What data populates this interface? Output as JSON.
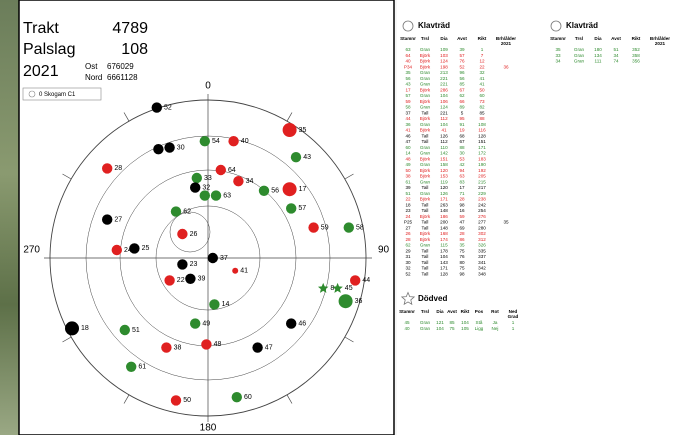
{
  "header": {
    "trakt_label": "Trakt",
    "trakt": "4789",
    "palslag_label": "Palslag",
    "palslag": "108",
    "year": "2021",
    "ost_label": "Ost",
    "ost": "676029",
    "nord_label": "Nord",
    "nord": "6661128"
  },
  "legend": "0 Skogam C1",
  "compass": {
    "n": "0",
    "e": "90",
    "s": "180",
    "w": "270"
  },
  "species_colors": {
    "Gran": "#2e8b2e",
    "Björk": "#e02020",
    "Tall": "#000000"
  },
  "plot": {
    "points": [
      {
        "label": "52",
        "east": -3.2,
        "north": 9.4,
        "color": "#000000"
      },
      {
        "label": "29",
        "east": -3.1,
        "north": 6.8,
        "color": "#000000"
      },
      {
        "label": "30",
        "east": -2.4,
        "north": 6.9,
        "color": "#000000"
      },
      {
        "label": "54",
        "east": -0.2,
        "north": 7.3,
        "color": "#2e8b2e"
      },
      {
        "label": "40",
        "east": 1.6,
        "north": 7.3,
        "color": "#e02020"
      },
      {
        "label": "35",
        "east": 5.1,
        "north": 8.0,
        "color": "#e02020",
        "large": true
      },
      {
        "label": "43",
        "east": 5.5,
        "north": 6.3,
        "color": "#2e8b2e"
      },
      {
        "label": "28",
        "east": -6.3,
        "north": 5.6,
        "color": "#e02020"
      },
      {
        "label": "64",
        "east": 0.8,
        "north": 5.5,
        "color": "#e02020"
      },
      {
        "label": "34",
        "east": 1.9,
        "north": 4.8,
        "color": "#e02020"
      },
      {
        "label": "33",
        "east": -0.7,
        "north": 5.0,
        "color": "#2e8b2e"
      },
      {
        "label": "32",
        "east": -0.8,
        "north": 4.4,
        "color": "#000000"
      },
      {
        "label": "56",
        "east": 3.5,
        "north": 4.2,
        "color": "#2e8b2e"
      },
      {
        "label": "17",
        "east": 5.1,
        "north": 4.3,
        "color": "#e02020",
        "large": true
      },
      {
        "label": "13",
        "east": -0.2,
        "north": 3.9,
        "color": "#2e8b2e"
      },
      {
        "label": "63",
        "east": 0.5,
        "north": 3.9,
        "color": "#2e8b2e"
      },
      {
        "label": "57",
        "east": 5.2,
        "north": 3.1,
        "color": "#2e8b2e"
      },
      {
        "label": "62",
        "east": -2.0,
        "north": 2.9,
        "color": "#2e8b2e"
      },
      {
        "label": "27",
        "east": -6.3,
        "north": 2.4,
        "color": "#000000"
      },
      {
        "label": "59",
        "east": 6.6,
        "north": 1.9,
        "color": "#e02020"
      },
      {
        "label": "58",
        "east": 8.8,
        "north": 1.9,
        "color": "#2e8b2e"
      },
      {
        "label": "26",
        "east": -1.6,
        "north": 1.5,
        "color": "#e02020"
      },
      {
        "label": "24",
        "east": -5.7,
        "north": 0.5,
        "color": "#e02020"
      },
      {
        "label": "25",
        "east": -4.6,
        "north": 0.6,
        "color": "#000000"
      },
      {
        "label": "37",
        "east": 0.3,
        "north": 0,
        "color": "#000000"
      },
      {
        "label": "23",
        "east": -1.6,
        "north": -0.4,
        "color": "#000000"
      },
      {
        "label": "41",
        "east": 1.7,
        "north": -0.8,
        "color": "#e02020",
        "small": true
      },
      {
        "label": "22",
        "east": -2.4,
        "north": -1.4,
        "color": "#e02020"
      },
      {
        "label": "39",
        "east": -1.1,
        "north": -1.3,
        "color": "#000000"
      },
      {
        "label": "8",
        "east": 7.2,
        "north": -1.9,
        "color": "#2e8b2e",
        "star": true
      },
      {
        "label": "45",
        "east": 8.1,
        "north": -1.9,
        "color": "#2e8b2e",
        "star": true
      },
      {
        "label": "44",
        "east": 9.2,
        "north": -1.4,
        "color": "#e02020"
      },
      {
        "label": "36",
        "east": 8.6,
        "north": -2.7,
        "color": "#2e8b2e",
        "large": true
      },
      {
        "label": "14",
        "east": 0.4,
        "north": -2.9,
        "color": "#2e8b2e"
      },
      {
        "label": "49",
        "east": -0.8,
        "north": -4.1,
        "color": "#2e8b2e"
      },
      {
        "label": "46",
        "east": 5.2,
        "north": -4.1,
        "color": "#000000"
      },
      {
        "label": "18",
        "east": -8.5,
        "north": -4.4,
        "color": "#000000",
        "large": true
      },
      {
        "label": "51",
        "east": -5.2,
        "north": -4.5,
        "color": "#2e8b2e"
      },
      {
        "label": "48",
        "east": -0.1,
        "north": -5.4,
        "color": "#e02020"
      },
      {
        "label": "38",
        "east": -2.6,
        "north": -5.6,
        "color": "#e02020"
      },
      {
        "label": "47",
        "east": 3.1,
        "north": -5.6,
        "color": "#000000"
      },
      {
        "label": "61",
        "east": -4.8,
        "north": -6.8,
        "color": "#2e8b2e"
      },
      {
        "label": "60",
        "east": 1.8,
        "north": -8.7,
        "color": "#2e8b2e"
      },
      {
        "label": "50",
        "east": -2.0,
        "north": -8.9,
        "color": "#e02020"
      }
    ]
  },
  "klavtrad": {
    "title": "Klavträd",
    "columns": [
      "Stamnr",
      "Trsl",
      "Dia",
      "Avst",
      "Rikt",
      "Brh/ålder"
    ],
    "year": "2021",
    "rows": [
      [
        "63",
        "Gran",
        "109",
        "39",
        "1"
      ],
      [
        "64",
        "Björk",
        "103",
        "57",
        "7"
      ],
      [
        "40",
        "Björk",
        "124",
        "76",
        "12"
      ],
      [
        "P34",
        "Björk",
        "198",
        "52",
        "22",
        "36"
      ],
      [
        "35",
        "Gran",
        "213",
        "96",
        "32"
      ],
      [
        "56",
        "Gran",
        "221",
        "56",
        "41"
      ],
      [
        "43",
        "Gran",
        "221",
        "85",
        "41"
      ],
      [
        "17",
        "Björk",
        "286",
        "67",
        "50"
      ],
      [
        "57",
        "Gran",
        "104",
        "62",
        "60"
      ],
      [
        "59",
        "Björk",
        "106",
        "66",
        "73"
      ],
      [
        "58",
        "Gran",
        "124",
        "89",
        "82"
      ],
      [
        "37",
        "Tall",
        "221",
        "5",
        "85"
      ],
      [
        "44",
        "Björk",
        "112",
        "95",
        "88"
      ],
      [
        "36",
        "Gran",
        "104",
        "91",
        "108"
      ],
      [
        "41",
        "Björk",
        "41",
        "19",
        "116"
      ],
      [
        "46",
        "Tall",
        "126",
        "68",
        "128"
      ],
      [
        "47",
        "Tall",
        "112",
        "67",
        "151"
      ],
      [
        "60",
        "Gran",
        "110",
        "88",
        "171"
      ],
      [
        "14",
        "Gran",
        "142",
        "30",
        "172"
      ],
      [
        "48",
        "Björk",
        "151",
        "53",
        "183"
      ],
      [
        "49",
        "Gran",
        "158",
        "42",
        "190"
      ],
      [
        "50",
        "Björk",
        "120",
        "94",
        "192"
      ],
      [
        "38",
        "Björk",
        "153",
        "63",
        "205"
      ],
      [
        "61",
        "Gran",
        "119",
        "83",
        "215"
      ],
      [
        "39",
        "Tall",
        "120",
        "17",
        "217"
      ],
      [
        "51",
        "Gran",
        "126",
        "71",
        "229"
      ],
      [
        "22",
        "Björk",
        "171",
        "28",
        "238"
      ],
      [
        "18",
        "Tall",
        "263",
        "98",
        "242"
      ],
      [
        "23",
        "Tall",
        "148",
        "16",
        "254"
      ],
      [
        "24",
        "Björk",
        "186",
        "59",
        "276"
      ],
      [
        "P25",
        "Tall",
        "200",
        "47",
        "277",
        "35"
      ],
      [
        "27",
        "Tall",
        "148",
        "69",
        "280"
      ],
      [
        "26",
        "Björk",
        "168",
        "28",
        "302"
      ],
      [
        "28",
        "Björk",
        "174",
        "86",
        "312"
      ],
      [
        "62",
        "Gran",
        "115",
        "35",
        "326"
      ],
      [
        "29",
        "Tall",
        "178",
        "75",
        "335"
      ],
      [
        "31",
        "Tall",
        "104",
        "76",
        "337"
      ],
      [
        "30",
        "Tall",
        "143",
        "80",
        "341"
      ],
      [
        "32",
        "Tall",
        "171",
        "75",
        "342"
      ],
      [
        "52",
        "Tall",
        "128",
        "98",
        "348"
      ]
    ]
  },
  "klavtrad2": {
    "title": "Klavträd",
    "columns": [
      "Stamnr",
      "Trsl",
      "Dia",
      "Avst",
      "Rikt",
      "Brh/ålder"
    ],
    "year": "2021",
    "rows": [
      [
        "35",
        "Gran",
        "180",
        "51",
        "352"
      ],
      [
        "33",
        "Gran",
        "134",
        "34",
        "358"
      ],
      [
        "34",
        "Gran",
        "111",
        "74",
        "356"
      ]
    ]
  },
  "dodved": {
    "title": "Dödved",
    "columns": [
      "Stamnr",
      "Trsl",
      "Dia",
      "Avst",
      "Rikt",
      "Pos",
      "Rot",
      "Ned"
    ],
    "columns_2": "Grad",
    "rows": [
      [
        "45",
        "Gran",
        "121",
        "85",
        "104",
        "Stå",
        "Ja",
        "1"
      ],
      [
        "40",
        "Gran",
        "104",
        "75",
        "105",
        "Ligg",
        "Nej",
        "1"
      ]
    ]
  }
}
